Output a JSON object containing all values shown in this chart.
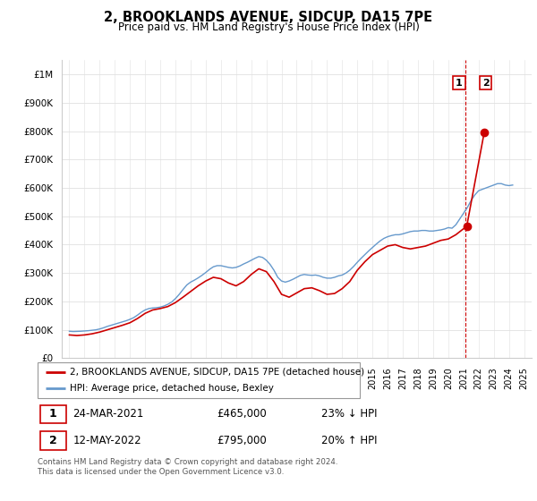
{
  "title": "2, BROOKLANDS AVENUE, SIDCUP, DA15 7PE",
  "subtitle": "Price paid vs. HM Land Registry's House Price Index (HPI)",
  "ylabel_ticks": [
    "£0",
    "£100K",
    "£200K",
    "£300K",
    "£400K",
    "£500K",
    "£600K",
    "£700K",
    "£800K",
    "£900K",
    "£1M"
  ],
  "ytick_values": [
    0,
    100000,
    200000,
    300000,
    400000,
    500000,
    600000,
    700000,
    800000,
    900000,
    1000000
  ],
  "ylim": [
    0,
    1050000
  ],
  "xlim_start": 1994.5,
  "xlim_end": 2025.5,
  "legend_line1": "2, BROOKLANDS AVENUE, SIDCUP, DA15 7PE (detached house)",
  "legend_line2": "HPI: Average price, detached house, Bexley",
  "line_color_red": "#cc0000",
  "line_color_blue": "#6699cc",
  "sale1_date": "24-MAR-2021",
  "sale1_price": "£465,000",
  "sale1_hpi": "23% ↓ HPI",
  "sale1_x": 2021.22,
  "sale1_y": 465000,
  "sale2_date": "12-MAY-2022",
  "sale2_price": "£795,000",
  "sale2_hpi": "20% ↑ HPI",
  "sale2_x": 2022.37,
  "sale2_y": 795000,
  "vline_x": 2021.15,
  "footer": "Contains HM Land Registry data © Crown copyright and database right 2024.\nThis data is licensed under the Open Government Licence v3.0.",
  "hpi_data_x": [
    1995.0,
    1995.25,
    1995.5,
    1995.75,
    1996.0,
    1996.25,
    1996.5,
    1996.75,
    1997.0,
    1997.25,
    1997.5,
    1997.75,
    1998.0,
    1998.25,
    1998.5,
    1998.75,
    1999.0,
    1999.25,
    1999.5,
    1999.75,
    2000.0,
    2000.25,
    2000.5,
    2000.75,
    2001.0,
    2001.25,
    2001.5,
    2001.75,
    2002.0,
    2002.25,
    2002.5,
    2002.75,
    2003.0,
    2003.25,
    2003.5,
    2003.75,
    2004.0,
    2004.25,
    2004.5,
    2004.75,
    2005.0,
    2005.25,
    2005.5,
    2005.75,
    2006.0,
    2006.25,
    2006.5,
    2006.75,
    2007.0,
    2007.25,
    2007.5,
    2007.75,
    2008.0,
    2008.25,
    2008.5,
    2008.75,
    2009.0,
    2009.25,
    2009.5,
    2009.75,
    2010.0,
    2010.25,
    2010.5,
    2010.75,
    2011.0,
    2011.25,
    2011.5,
    2011.75,
    2012.0,
    2012.25,
    2012.5,
    2012.75,
    2013.0,
    2013.25,
    2013.5,
    2013.75,
    2014.0,
    2014.25,
    2014.5,
    2014.75,
    2015.0,
    2015.25,
    2015.5,
    2015.75,
    2016.0,
    2016.25,
    2016.5,
    2016.75,
    2017.0,
    2017.25,
    2017.5,
    2017.75,
    2018.0,
    2018.25,
    2018.5,
    2018.75,
    2019.0,
    2019.25,
    2019.5,
    2019.75,
    2020.0,
    2020.25,
    2020.5,
    2020.75,
    2021.0,
    2021.25,
    2021.5,
    2021.75,
    2022.0,
    2022.25,
    2022.5,
    2022.75,
    2023.0,
    2023.25,
    2023.5,
    2023.75,
    2024.0,
    2024.25
  ],
  "hpi_data_y": [
    95000,
    94000,
    94500,
    95000,
    96000,
    97000,
    98500,
    100000,
    103000,
    107000,
    112000,
    116000,
    120000,
    124000,
    128000,
    132000,
    137000,
    143000,
    152000,
    162000,
    170000,
    175000,
    177000,
    178000,
    180000,
    184000,
    190000,
    198000,
    210000,
    225000,
    242000,
    258000,
    268000,
    275000,
    283000,
    292000,
    302000,
    313000,
    322000,
    326000,
    326000,
    323000,
    320000,
    318000,
    320000,
    325000,
    332000,
    338000,
    345000,
    352000,
    358000,
    355000,
    345000,
    330000,
    310000,
    285000,
    272000,
    268000,
    272000,
    278000,
    285000,
    292000,
    295000,
    293000,
    292000,
    293000,
    290000,
    285000,
    282000,
    282000,
    285000,
    290000,
    293000,
    300000,
    310000,
    323000,
    338000,
    352000,
    365000,
    378000,
    390000,
    402000,
    413000,
    422000,
    428000,
    432000,
    435000,
    435000,
    438000,
    442000,
    446000,
    448000,
    448000,
    450000,
    450000,
    448000,
    448000,
    450000,
    452000,
    455000,
    460000,
    458000,
    470000,
    490000,
    510000,
    530000,
    555000,
    575000,
    590000,
    595000,
    600000,
    605000,
    610000,
    615000,
    615000,
    610000,
    608000,
    610000
  ],
  "price_data_x": [
    1995.0,
    1995.5,
    1996.0,
    1996.5,
    1997.0,
    1997.5,
    1998.0,
    1998.5,
    1999.0,
    1999.5,
    2000.0,
    2000.5,
    2001.0,
    2001.5,
    2002.0,
    2002.5,
    2003.0,
    2003.5,
    2004.0,
    2004.5,
    2005.0,
    2005.5,
    2006.0,
    2006.5,
    2007.0,
    2007.5,
    2008.0,
    2008.5,
    2009.0,
    2009.5,
    2010.0,
    2010.5,
    2011.0,
    2011.5,
    2012.0,
    2012.5,
    2013.0,
    2013.5,
    2014.0,
    2014.5,
    2015.0,
    2015.5,
    2016.0,
    2016.5,
    2017.0,
    2017.5,
    2018.0,
    2018.5,
    2019.0,
    2019.5,
    2020.0,
    2020.5,
    2021.22,
    2022.37
  ],
  "price_data_y": [
    82000,
    80000,
    82000,
    86000,
    92000,
    100000,
    108000,
    116000,
    125000,
    140000,
    158000,
    170000,
    175000,
    182000,
    196000,
    215000,
    235000,
    255000,
    272000,
    285000,
    280000,
    265000,
    255000,
    270000,
    295000,
    315000,
    305000,
    270000,
    225000,
    215000,
    230000,
    245000,
    248000,
    238000,
    225000,
    228000,
    245000,
    270000,
    310000,
    340000,
    365000,
    380000,
    395000,
    400000,
    390000,
    385000,
    390000,
    395000,
    405000,
    415000,
    420000,
    435000,
    465000,
    795000
  ]
}
